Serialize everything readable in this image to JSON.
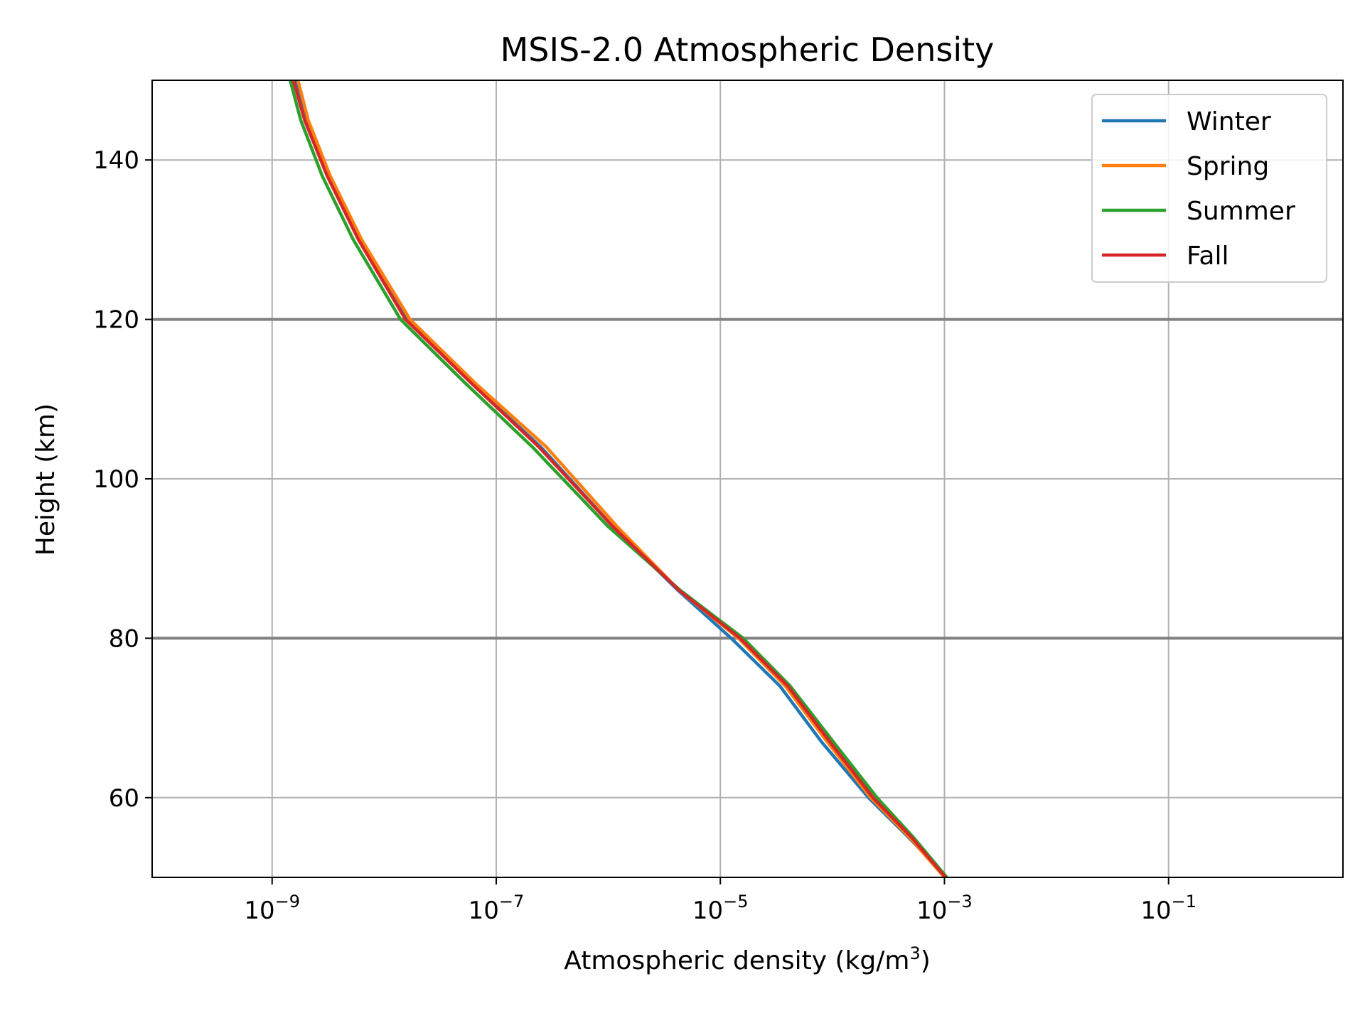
{
  "chart_data": {
    "type": "line",
    "title": "MSIS-2.0 Atmospheric Density",
    "xlabel": "Atmospheric density (kg/m³)",
    "xlabel_main": "Atmospheric density (kg/m",
    "xlabel_sup": "3",
    "xlabel_end": ")",
    "ylabel": "Height (km)",
    "xscale": "log",
    "xlim": [
      8.5e-11,
      3.6
    ],
    "ylim": [
      50,
      150
    ],
    "grid": true,
    "legend_position": "top-right",
    "xticks": [
      {
        "value": 1e-09,
        "base": "10",
        "exp": "−9"
      },
      {
        "value": 1e-07,
        "base": "10",
        "exp": "−7"
      },
      {
        "value": 1e-05,
        "base": "10",
        "exp": "−5"
      },
      {
        "value": 0.001,
        "base": "10",
        "exp": "−3"
      },
      {
        "value": 0.1,
        "base": "10",
        "exp": "−1"
      }
    ],
    "yticks": [
      {
        "value": 60,
        "label": "60"
      },
      {
        "value": 80,
        "label": "80"
      },
      {
        "value": 100,
        "label": "100"
      },
      {
        "value": 120,
        "label": "120"
      },
      {
        "value": 140,
        "label": "140"
      }
    ],
    "reference_lines": [
      {
        "y": 80,
        "color": "#808080"
      },
      {
        "y": 120,
        "color": "#808080"
      }
    ],
    "series": [
      {
        "name": "Winter",
        "color": "#1f77b4",
        "x": [
          0.00105,
          0.00048,
          0.00021,
          8e-05,
          3.4e-05,
          1.25e-05,
          4.2e-06,
          1.1e-06,
          2.5e-07,
          6e-08,
          1.6e-08,
          6e-09,
          3.2e-09,
          2e-09,
          1.6e-09
        ],
        "y": [
          50,
          55,
          60,
          67,
          74,
          80,
          86,
          94,
          104,
          112,
          120,
          130,
          138,
          145,
          150
        ]
      },
      {
        "name": "Spring",
        "color": "#ff7f0e",
        "x": [
          0.001,
          0.00049,
          0.00022,
          9e-05,
          3.8e-05,
          1.45e-05,
          4.3e-06,
          1.2e-06,
          2.8e-07,
          6.5e-08,
          1.7e-08,
          6.3e-09,
          3.3e-09,
          2.1e-09,
          1.7e-09
        ],
        "y": [
          50,
          55,
          60,
          67,
          74,
          80,
          86,
          94,
          104,
          112,
          120,
          130,
          138,
          145,
          150
        ]
      },
      {
        "name": "Summer",
        "color": "#2ca02c",
        "x": [
          0.00105,
          0.00053,
          0.00025,
          0.000102,
          4.2e-05,
          1.6e-05,
          4.4e-06,
          1e-06,
          2.1e-07,
          5.3e-08,
          1.4e-08,
          5.3e-09,
          2.8e-09,
          1.8e-09,
          1.45e-09
        ],
        "y": [
          50,
          55,
          60,
          67,
          74,
          80,
          86,
          94,
          104,
          112,
          120,
          130,
          138,
          145,
          150
        ]
      },
      {
        "name": "Fall",
        "color": "#d62728",
        "x": [
          0.00102,
          0.00051,
          0.00023,
          9.5e-05,
          4e-05,
          1.5e-05,
          4.3e-06,
          1.1e-06,
          2.4e-07,
          6e-08,
          1.55e-08,
          5.9e-09,
          3.1e-09,
          1.95e-09,
          1.55e-09
        ],
        "y": [
          50,
          55,
          60,
          67,
          74,
          80,
          86,
          94,
          104,
          112,
          120,
          130,
          138,
          145,
          150
        ]
      }
    ]
  }
}
